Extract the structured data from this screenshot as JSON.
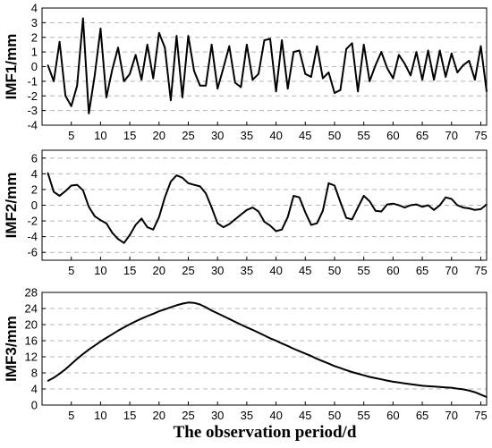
{
  "chart_data": [
    {
      "type": "line",
      "ylabel": "IMF1/mm",
      "xlabel": "",
      "xlim": [
        0,
        76
      ],
      "ylim": [
        -4,
        4
      ],
      "yticks": [
        -4,
        -3,
        -2,
        -1,
        0,
        1,
        2,
        3,
        4
      ],
      "xticks": [
        5,
        10,
        15,
        20,
        25,
        30,
        35,
        40,
        45,
        50,
        55,
        60,
        65,
        70,
        75
      ],
      "grid": "horizontal dashed",
      "series": [
        {
          "x": [
            1,
            2,
            3,
            4,
            5,
            6,
            7,
            8,
            9,
            10,
            11,
            12,
            13,
            14,
            15,
            16,
            17,
            18,
            19,
            20,
            21,
            22,
            23,
            24,
            25,
            26,
            27,
            28,
            29,
            30,
            31,
            32,
            33,
            34,
            35,
            36,
            37,
            38,
            39,
            40,
            41,
            42,
            43,
            44,
            45,
            46,
            47,
            48,
            49,
            50,
            51,
            52,
            53,
            54,
            55,
            56,
            57,
            58,
            59,
            60,
            61,
            62,
            63,
            64,
            65,
            66,
            67,
            68,
            69,
            70,
            71,
            72,
            73,
            74,
            75,
            76
          ],
          "values": [
            0.1,
            -1.0,
            1.7,
            -2.0,
            -2.7,
            -1.3,
            3.3,
            -3.2,
            -0.6,
            2.6,
            -2.1,
            -0.2,
            1.3,
            -1.0,
            -0.5,
            0.8,
            -0.9,
            1.5,
            -0.8,
            2.3,
            1.3,
            -2.3,
            2.1,
            -2.1,
            2.1,
            -0.3,
            -1.3,
            -1.3,
            1.5,
            -1.5,
            -0.1,
            1.4,
            -1.1,
            -1.4,
            1.5,
            -0.9,
            -0.5,
            1.8,
            1.9,
            -1.7,
            1.8,
            -1.5,
            1.0,
            1.1,
            -0.5,
            -0.7,
            1.4,
            -0.8,
            -0.4,
            -1.8,
            -1.6,
            1.2,
            1.6,
            -1.7,
            1.5,
            -1.0,
            0.1,
            1.0,
            -0.1,
            -0.8,
            0.8,
            0.2,
            -0.6,
            1.0,
            -0.9,
            1.1,
            -0.9,
            1.1,
            -0.7,
            0.9,
            -0.4,
            0.1,
            0.4,
            -0.9,
            1.4,
            -1.7
          ]
        }
      ]
    },
    {
      "type": "line",
      "ylabel": "IMF2/mm",
      "xlabel": "",
      "xlim": [
        0,
        76
      ],
      "ylim": [
        -7,
        7
      ],
      "yticks": [
        -6,
        -4,
        -2,
        0,
        2,
        4,
        6
      ],
      "xticks": [
        5,
        10,
        15,
        20,
        25,
        30,
        35,
        40,
        45,
        50,
        55,
        60,
        65,
        70,
        75
      ],
      "grid": "horizontal dashed",
      "series": [
        {
          "x": [
            1,
            2,
            3,
            4,
            5,
            6,
            7,
            8,
            9,
            10,
            11,
            12,
            13,
            14,
            15,
            16,
            17,
            18,
            19,
            20,
            21,
            22,
            23,
            24,
            25,
            26,
            27,
            28,
            29,
            30,
            31,
            32,
            33,
            34,
            35,
            36,
            37,
            38,
            39,
            40,
            41,
            42,
            43,
            44,
            45,
            46,
            47,
            48,
            49,
            50,
            51,
            52,
            53,
            54,
            55,
            56,
            57,
            58,
            59,
            60,
            61,
            62,
            63,
            64,
            65,
            66,
            67,
            68,
            69,
            70,
            71,
            72,
            73,
            74,
            75,
            76
          ],
          "values": [
            4.1,
            1.7,
            1.2,
            1.8,
            2.5,
            2.6,
            1.9,
            -0.2,
            -1.4,
            -1.9,
            -2.3,
            -3.5,
            -4.3,
            -4.8,
            -3.8,
            -2.5,
            -1.7,
            -2.8,
            -3.1,
            -1.5,
            1.0,
            3.0,
            3.8,
            3.5,
            2.8,
            2.6,
            2.4,
            1.5,
            -0.3,
            -2.3,
            -2.8,
            -2.4,
            -1.8,
            -1.2,
            -0.6,
            -0.3,
            -0.8,
            -2.1,
            -2.6,
            -3.3,
            -3.1,
            -1.5,
            1.2,
            1.0,
            -0.9,
            -2.5,
            -2.3,
            -0.7,
            2.8,
            2.5,
            0.4,
            -1.6,
            -1.8,
            -0.3,
            1.2,
            0.5,
            -0.7,
            -0.8,
            0.1,
            0.2,
            0.0,
            -0.3,
            0.0,
            0.1,
            -0.2,
            0.0,
            -0.6,
            0.0,
            1.0,
            0.8,
            0.0,
            -0.3,
            -0.4,
            -0.6,
            -0.5,
            0.1
          ]
        }
      ]
    },
    {
      "type": "line",
      "ylabel": "IMF3/mm",
      "xlabel": "The observation period/d",
      "xlim": [
        0,
        76
      ],
      "ylim": [
        0,
        28
      ],
      "yticks": [
        0,
        4,
        8,
        12,
        16,
        20,
        24,
        28
      ],
      "xticks": [
        5,
        10,
        15,
        20,
        25,
        30,
        35,
        40,
        45,
        50,
        55,
        60,
        65,
        70,
        75
      ],
      "grid": "horizontal dashed",
      "series": [
        {
          "x": [
            1,
            2,
            3,
            4,
            5,
            6,
            7,
            8,
            9,
            10,
            11,
            12,
            13,
            14,
            15,
            16,
            17,
            18,
            19,
            20,
            21,
            22,
            23,
            24,
            25,
            26,
            27,
            28,
            29,
            30,
            31,
            32,
            33,
            34,
            35,
            36,
            37,
            38,
            39,
            40,
            41,
            42,
            43,
            44,
            45,
            46,
            47,
            48,
            49,
            50,
            51,
            52,
            53,
            54,
            55,
            56,
            57,
            58,
            59,
            60,
            61,
            62,
            63,
            64,
            65,
            66,
            67,
            68,
            69,
            70,
            71,
            72,
            73,
            74,
            75,
            76
          ],
          "values": [
            6.0,
            6.8,
            7.8,
            8.9,
            10.2,
            11.5,
            12.7,
            13.8,
            14.8,
            15.8,
            16.7,
            17.6,
            18.5,
            19.3,
            20.1,
            20.8,
            21.5,
            22.1,
            22.7,
            23.3,
            23.8,
            24.3,
            24.8,
            25.2,
            25.5,
            25.4,
            25.0,
            24.3,
            23.5,
            22.8,
            22.1,
            21.4,
            20.7,
            20.0,
            19.3,
            18.7,
            18.0,
            17.3,
            16.6,
            16.0,
            15.3,
            14.7,
            14.0,
            13.4,
            12.8,
            12.2,
            11.5,
            10.9,
            10.3,
            9.7,
            9.2,
            8.7,
            8.2,
            7.8,
            7.4,
            7.0,
            6.7,
            6.4,
            6.1,
            5.8,
            5.6,
            5.4,
            5.2,
            5.0,
            4.8,
            4.7,
            4.6,
            4.5,
            4.4,
            4.3,
            4.1,
            3.9,
            3.6,
            3.2,
            2.6,
            2.0
          ]
        }
      ]
    }
  ]
}
